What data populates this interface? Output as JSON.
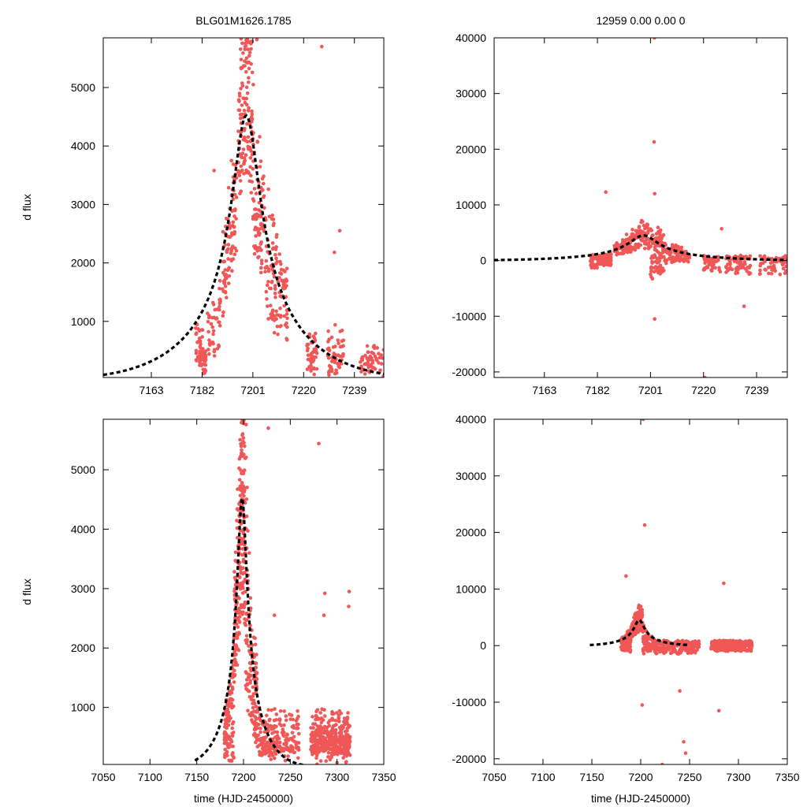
{
  "colors": {
    "points": "#f05757",
    "model": "#000000",
    "axes": "#000000",
    "background": "#ffffff"
  },
  "chart_data": [
    {
      "type": "scatter",
      "panel": "top-left",
      "title": "BLG01M1626.1785",
      "xlabel": "",
      "ylabel": "d flux",
      "xlim": [
        7145,
        7250
      ],
      "ylim": [
        40,
        5850
      ],
      "xticks": [
        7163,
        7182,
        7201,
        7220,
        7239
      ],
      "xtick_labels": [
        "7163",
        "7182",
        "7201",
        "7220",
        "7239"
      ],
      "yticks": [
        1000,
        2000,
        3000,
        4000,
        5000
      ],
      "ytick_labels": [
        "1000",
        "2000",
        "3000",
        "4000",
        "5000"
      ],
      "model": {
        "name": "",
        "t0": 7198.5,
        "peak": 4520,
        "width": 5.6,
        "baseline": 0
      },
      "clusters": [
        {
          "t": [
            7179.5,
            7183.5
          ],
          "rel": [
            0.05,
            0.42
          ],
          "n": 70
        },
        {
          "t": [
            7184,
            7189
          ],
          "rel": [
            0.25,
            0.85
          ],
          "n": 45
        },
        {
          "t": [
            7189.5,
            7195
          ],
          "rel": [
            0.55,
            1.08
          ],
          "n": 90
        },
        {
          "t": [
            7195.5,
            7201
          ],
          "rel": [
            0.8,
            1.3
          ],
          "n": 130
        },
        {
          "t": [
            7201,
            7206
          ],
          "rel": [
            0.6,
            1.2
          ],
          "n": 90
        },
        {
          "t": [
            7206,
            7214
          ],
          "rel": [
            0.45,
            1.4
          ],
          "n": 110
        },
        {
          "t": [
            7221,
            7225
          ],
          "rel": [
            0.0,
            0.25
          ],
          "n": 45
        },
        {
          "t": [
            7229,
            7235
          ],
          "rel": [
            0.0,
            0.28
          ],
          "n": 55
        },
        {
          "t": [
            7241,
            7250
          ],
          "rel": [
            0.0,
            0.15
          ],
          "n": 55
        }
      ],
      "outliers": [
        [
          7199.3,
          5780
        ],
        [
          7202.5,
          5820
        ],
        [
          7226.8,
          5700
        ],
        [
          7233.5,
          2550
        ],
        [
          7231.5,
          2180
        ],
        [
          7186.5,
          3580
        ]
      ]
    },
    {
      "type": "scatter",
      "panel": "top-right",
      "title": "12959 0.00 0.00 0",
      "xlabel": "",
      "ylabel": "",
      "xlim": [
        7145,
        7250
      ],
      "ylim": [
        -21000,
        40000
      ],
      "xticks": [
        7163,
        7182,
        7201,
        7220,
        7239
      ],
      "xtick_labels": [
        "7163",
        "7182",
        "7201",
        "7220",
        "7239"
      ],
      "yticks": [
        -20000,
        -10000,
        0,
        10000,
        20000,
        30000,
        40000
      ],
      "ytick_labels": [
        "-20000",
        "-10000",
        "0",
        "10000",
        "20000",
        "30000",
        "40000"
      ],
      "model": {
        "name": "",
        "t0": 7198.5,
        "peak": 4520,
        "width": 5.6,
        "baseline": 0
      },
      "clusters": [
        {
          "t": [
            7179.5,
            7187
          ],
          "rel": [
            -0.6,
            0.8
          ],
          "n": 100
        },
        {
          "t": [
            7188,
            7201
          ],
          "rel": [
            0.5,
            1.5
          ],
          "n": 150
        },
        {
          "t": [
            7201,
            7206
          ],
          "rel": [
            -0.8,
            1.8
          ],
          "n": 100
        },
        {
          "t": [
            7206,
            7215
          ],
          "rel": [
            -0.2,
            1.5
          ],
          "n": 100
        },
        {
          "t": [
            7220,
            7226
          ],
          "rel": [
            -0.8,
            0.8
          ],
          "n": 50
        },
        {
          "t": [
            7228,
            7237
          ],
          "rel": [
            -1.0,
            0.8
          ],
          "n": 80
        },
        {
          "t": [
            7240,
            7250
          ],
          "rel": [
            -1.0,
            0.5
          ],
          "n": 60
        }
      ],
      "outliers": [
        [
          7202.4,
          40000
        ],
        [
          7202.3,
          21300
        ],
        [
          7202.5,
          12000
        ],
        [
          7185,
          12300
        ],
        [
          7202.5,
          -10500
        ],
        [
          7234.5,
          -8200
        ],
        [
          7220.5,
          -21000
        ],
        [
          7226.5,
          5700
        ]
      ]
    },
    {
      "type": "scatter",
      "panel": "bottom-left",
      "title": "",
      "xlabel": "time (HJD-2450000)",
      "ylabel": "d flux",
      "xlim": [
        7050,
        7350
      ],
      "ylim": [
        40,
        5850
      ],
      "xticks": [
        7050,
        7100,
        7150,
        7200,
        7250,
        7300,
        7350
      ],
      "xtick_labels": [
        "7050",
        "7100",
        "7150",
        "7200",
        "7250",
        "7300",
        "7350"
      ],
      "yticks": [
        1000,
        2000,
        3000,
        4000,
        5000
      ],
      "ytick_labels": [
        "1000",
        "2000",
        "3000",
        "4000",
        "5000"
      ],
      "model": {
        "name": "",
        "t0": 7198.5,
        "peak": 4520,
        "width": 5.6,
        "baseline": 0,
        "from": 7148
      },
      "clusters": [
        {
          "t": [
            7179.5,
            7190
          ],
          "rel": [
            0.05,
            0.9
          ],
          "n": 110
        },
        {
          "t": [
            7190,
            7202
          ],
          "rel": [
            0.6,
            1.3
          ],
          "n": 230
        },
        {
          "t": [
            7202,
            7215
          ],
          "rel": [
            0.3,
            1.4
          ],
          "n": 140
        },
        {
          "t": [
            7215,
            7260
          ],
          "rel": [
            0.0,
            0.5
          ],
          "n": 220
        },
        {
          "t": [
            7272,
            7314
          ],
          "rel": [
            0.0,
            0.65
          ],
          "n": 420
        }
      ],
      "outliers": [
        [
          7199.5,
          5800
        ],
        [
          7202.8,
          5760
        ],
        [
          7226.5,
          5700
        ],
        [
          7280.5,
          5440
        ],
        [
          7313,
          2950
        ],
        [
          7287,
          2920
        ],
        [
          7286,
          2550
        ],
        [
          7312.5,
          2700
        ],
        [
          7233,
          2550
        ]
      ]
    },
    {
      "type": "scatter",
      "panel": "bottom-right",
      "title": "",
      "xlabel": "time (HJD-2450000)",
      "ylabel": "",
      "xlim": [
        7050,
        7350
      ],
      "ylim": [
        -21000,
        40000
      ],
      "xticks": [
        7050,
        7100,
        7150,
        7200,
        7250,
        7300,
        7350
      ],
      "xtick_labels": [
        "7050",
        "7100",
        "7150",
        "7200",
        "7250",
        "7300",
        "7350"
      ],
      "yticks": [
        -20000,
        -10000,
        0,
        10000,
        20000,
        30000,
        40000
      ],
      "ytick_labels": [
        "-20000",
        "-10000",
        "0",
        "10000",
        "20000",
        "30000",
        "40000"
      ],
      "model": {
        "name": "",
        "t0": 7198.5,
        "peak": 4520,
        "width": 5.6,
        "baseline": 0,
        "from": 7148,
        "to": 7248
      },
      "clusters": [
        {
          "t": [
            7179.5,
            7190
          ],
          "rel": [
            -0.6,
            1.4
          ],
          "n": 110
        },
        {
          "t": [
            7190,
            7202
          ],
          "rel": [
            0.6,
            1.5
          ],
          "n": 150
        },
        {
          "t": [
            7202,
            7215
          ],
          "rel": [
            -0.5,
            1.0
          ],
          "n": 110
        },
        {
          "t": [
            7215,
            7260
          ],
          "rel": [
            -0.6,
            0.6
          ],
          "n": 220
        },
        {
          "t": [
            7272,
            7314
          ],
          "rel": [
            -0.4,
            0.6
          ],
          "n": 380
        }
      ],
      "outliers": [
        [
          7202.5,
          40000
        ],
        [
          7204,
          21300
        ],
        [
          7185,
          12300
        ],
        [
          7285,
          11000
        ],
        [
          7201.5,
          -10500
        ],
        [
          7244,
          -17000
        ],
        [
          7246,
          -19000
        ],
        [
          7222,
          -21000
        ],
        [
          7280,
          -11500
        ],
        [
          7240,
          -8000
        ]
      ]
    }
  ]
}
